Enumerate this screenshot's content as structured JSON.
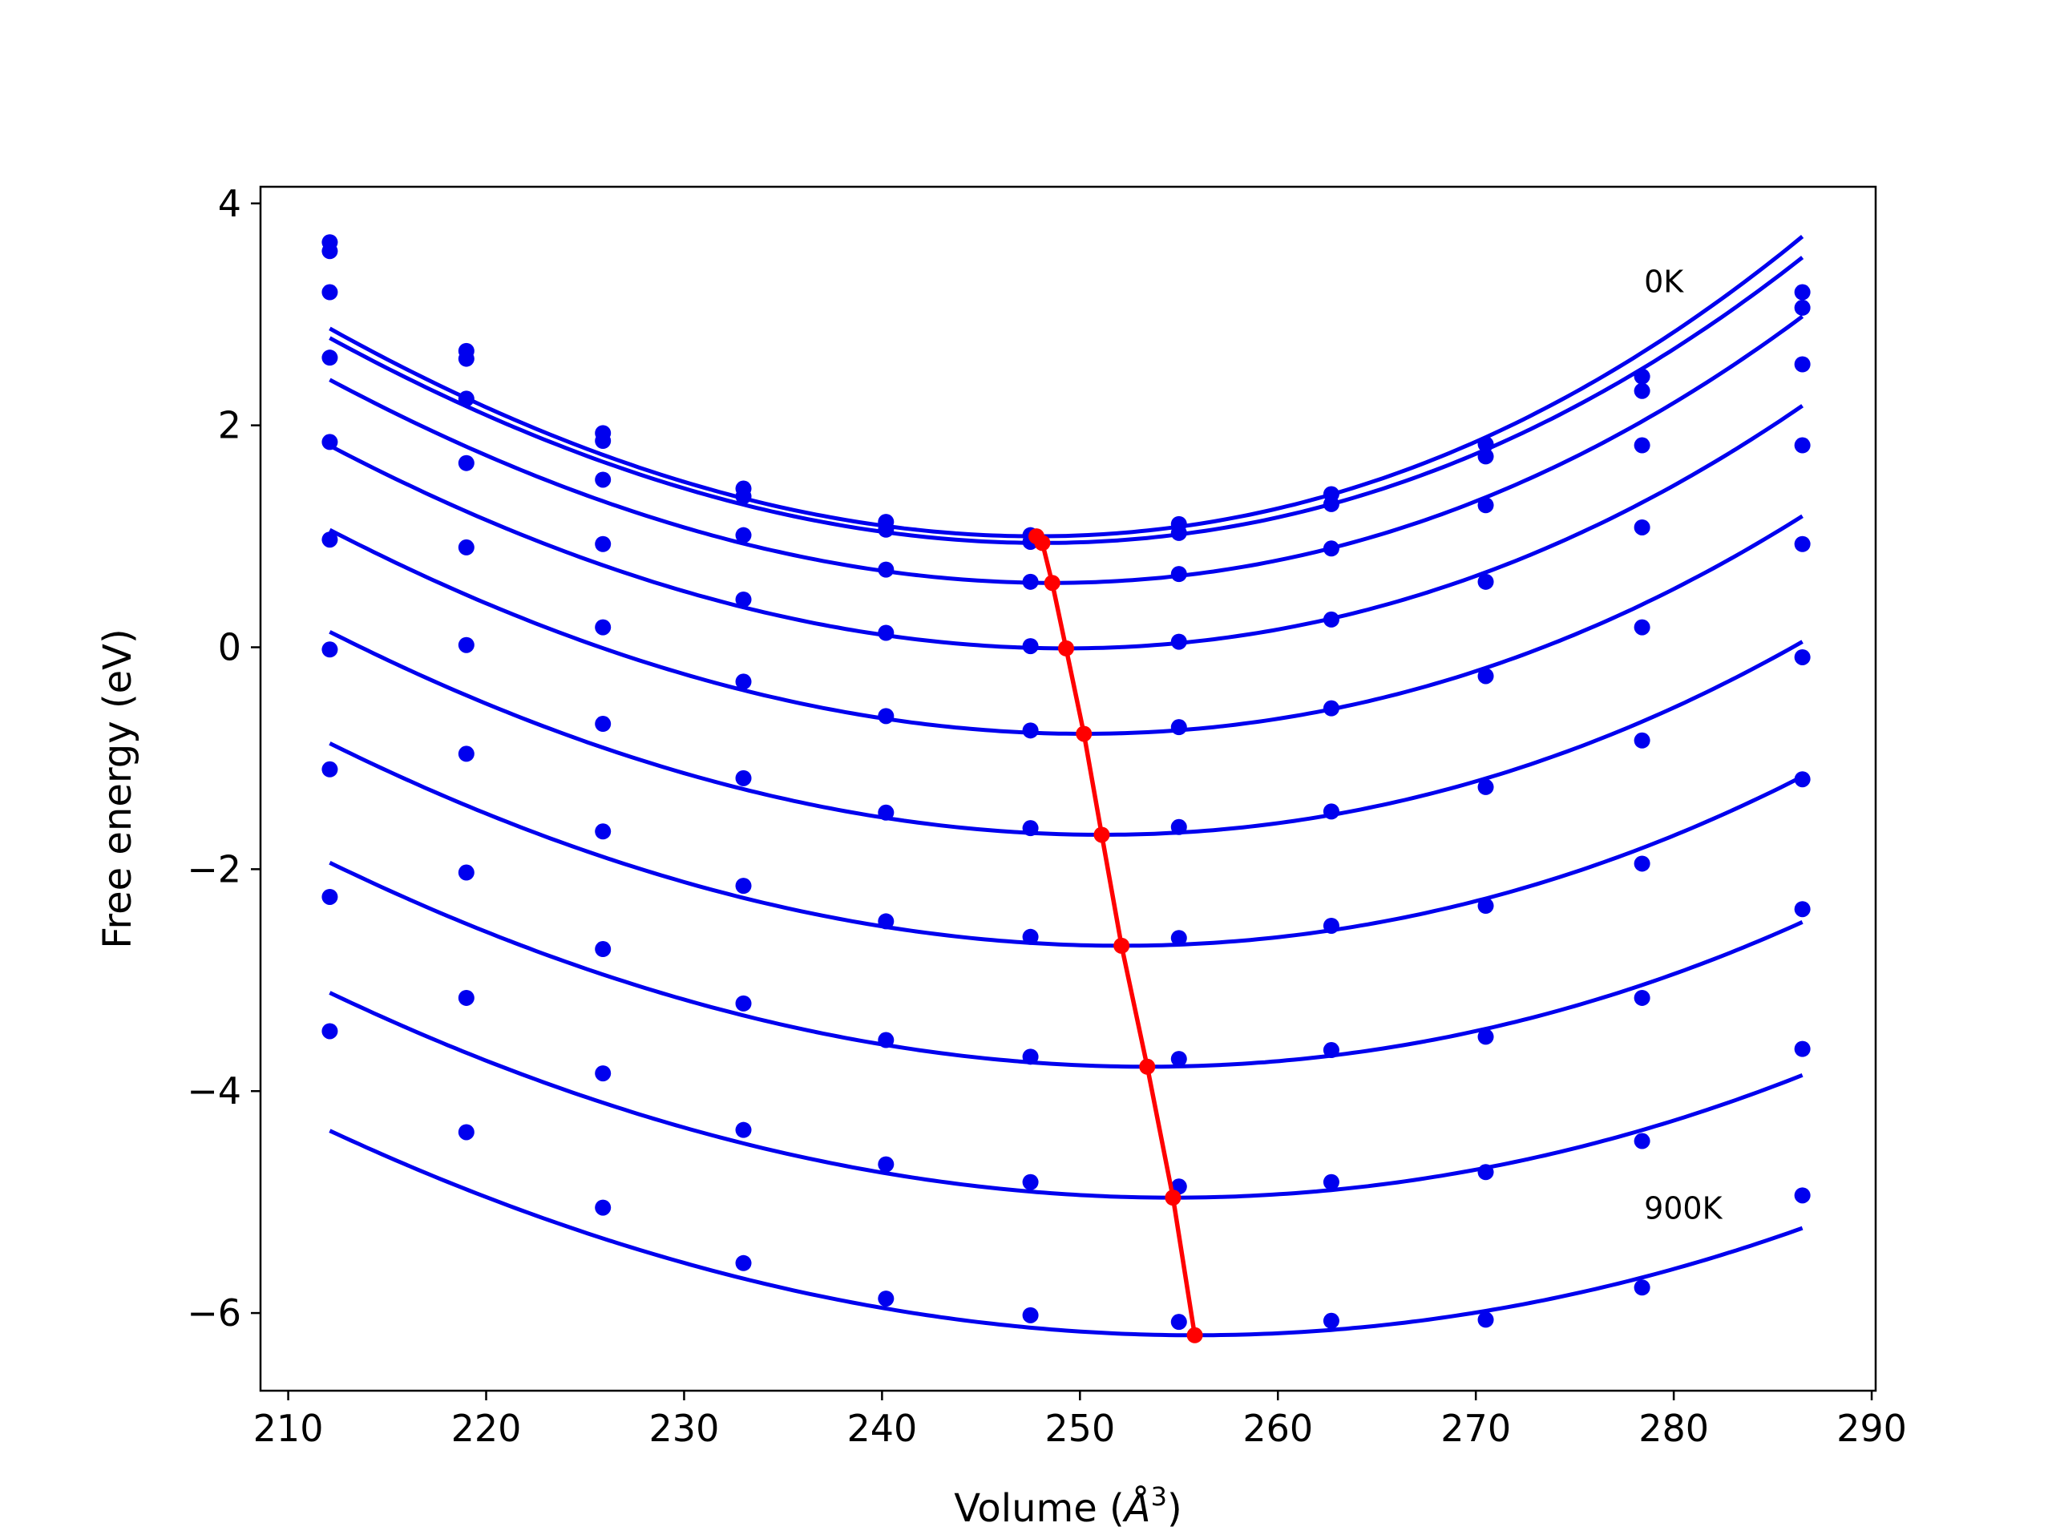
{
  "chart_data": {
    "type": "line",
    "xlabel": {
      "prefix": "Volume (",
      "unit_symbol": "Å",
      "unit_power": "3",
      "suffix": ")"
    },
    "ylabel": "Free energy (eV)",
    "xlim": [
      208.6,
      290.2
    ],
    "ylim": [
      -6.7,
      4.15
    ],
    "xticks": [
      210,
      220,
      230,
      240,
      250,
      260,
      270,
      280,
      290
    ],
    "yticks": [
      -6,
      -4,
      -2,
      0,
      2,
      4
    ],
    "ytick_labels": [
      "−6",
      "−4",
      "−2",
      "0",
      "2",
      "4"
    ],
    "grid": false,
    "annotations": [
      {
        "text": "0K",
        "x": 278.5,
        "y": 3.3
      },
      {
        "text": "900K",
        "x": 278.5,
        "y": -5.05
      }
    ],
    "curve_color": "#0000ee",
    "equilibrium_color": "#ff0000",
    "volumes": [
      212.1,
      219.0,
      225.9,
      233.0,
      240.2,
      247.5,
      255.0,
      262.7,
      270.5,
      278.4,
      286.5
    ],
    "series": [
      {
        "points": [
          3.65,
          2.67,
          1.93,
          1.43,
          1.13,
          1.01,
          1.11,
          1.38,
          1.83,
          2.44,
          3.2
        ],
        "fit": {
          "vmin": 247.8,
          "fmin": 1.0,
          "a": 0.00163,
          "b": 4.5e-06
        }
      },
      {
        "points": [
          3.57,
          2.6,
          1.86,
          1.36,
          1.06,
          0.95,
          1.03,
          1.29,
          1.72,
          2.31,
          3.06
        ],
        "fit": {
          "vmin": 248.1,
          "fmin": 0.94,
          "a": 0.00158,
          "b": 4.3e-06
        }
      },
      {
        "points": [
          3.2,
          2.24,
          1.51,
          1.01,
          0.7,
          0.59,
          0.66,
          0.89,
          1.28,
          1.82,
          2.55
        ],
        "fit": {
          "vmin": 248.6,
          "fmin": 0.58,
          "a": 0.00152,
          "b": 4e-06
        }
      },
      {
        "points": [
          2.61,
          1.66,
          0.93,
          0.43,
          0.13,
          0.01,
          0.05,
          0.25,
          0.59,
          1.08,
          1.82
        ],
        "fit": {
          "vmin": 249.3,
          "fmin": -0.01,
          "a": 0.00145,
          "b": 3.5e-06
        }
      },
      {
        "points": [
          1.85,
          0.9,
          0.18,
          -0.31,
          -0.62,
          -0.75,
          -0.72,
          -0.55,
          -0.26,
          0.18,
          0.93
        ],
        "fit": {
          "vmin": 250.2,
          "fmin": -0.78,
          "a": 0.00138,
          "b": 3e-06
        }
      },
      {
        "points": [
          0.97,
          0.02,
          -0.69,
          -1.18,
          -1.49,
          -1.63,
          -1.62,
          -1.48,
          -1.26,
          -0.84,
          -0.09
        ],
        "fit": {
          "vmin": 251.1,
          "fmin": -1.69,
          "a": 0.0013,
          "b": 2.5e-06
        }
      },
      {
        "points": [
          -0.02,
          -0.96,
          -1.66,
          -2.15,
          -2.47,
          -2.61,
          -2.62,
          -2.51,
          -2.33,
          -1.95,
          -1.19
        ],
        "fit": {
          "vmin": 252.1,
          "fmin": -2.69,
          "a": 0.00122,
          "b": 2e-06
        }
      },
      {
        "points": [
          -1.1,
          -2.03,
          -2.72,
          -3.21,
          -3.54,
          -3.69,
          -3.71,
          -3.63,
          -3.51,
          -3.16,
          -2.36
        ],
        "fit": {
          "vmin": 253.4,
          "fmin": -3.78,
          "a": 0.00114,
          "b": 1.5e-06
        }
      },
      {
        "points": [
          -2.25,
          -3.16,
          -3.84,
          -4.35,
          -4.66,
          -4.82,
          -4.86,
          -4.82,
          -4.73,
          -4.45,
          -3.62
        ],
        "fit": {
          "vmin": 254.7,
          "fmin": -4.96,
          "a": 0.00106,
          "b": 1e-06
        }
      },
      {
        "points": [
          -3.46,
          -4.37,
          -5.05,
          -5.55,
          -5.87,
          -6.02,
          -6.08,
          -6.07,
          -6.06,
          -5.77,
          -4.94
        ],
        "fit": {
          "vmin": 255.8,
          "fmin": -6.2,
          "a": 0.001,
          "b": 8e-07
        }
      }
    ],
    "equilibrium": {
      "x": [
        247.8,
        248.1,
        248.6,
        249.3,
        250.2,
        251.1,
        252.1,
        253.4,
        254.7,
        255.8
      ],
      "y": [
        1.0,
        0.94,
        0.58,
        -0.01,
        -0.78,
        -1.69,
        -2.69,
        -3.78,
        -4.96,
        -6.2
      ]
    }
  }
}
